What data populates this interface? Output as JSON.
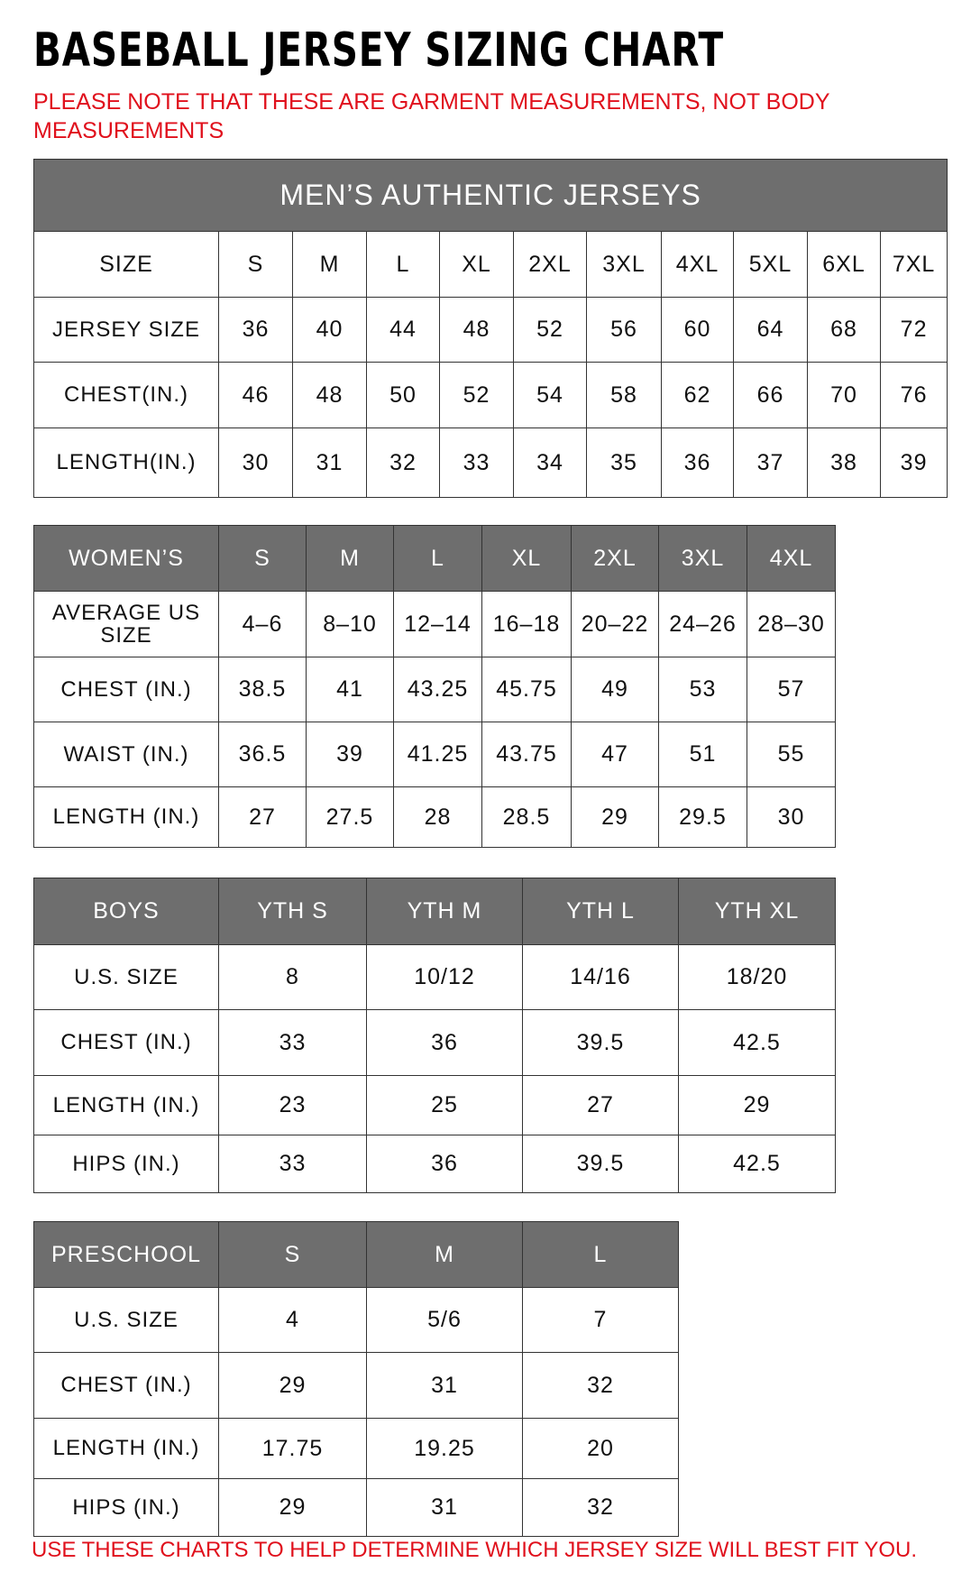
{
  "title": "BASEBALL JERSEY SIZING CHART",
  "note": "PLEASE NOTE THAT THESE ARE GARMENT MEASUREMENTS, NOT BODY MEASUREMENTS",
  "footer": "USE THESE CHARTS TO HELP DETERMINE WHICH JERSEY SIZE WILL BEST FIT YOU.",
  "colors": {
    "header_bg": "#6e6e6e",
    "accent_red": "#e0101c"
  },
  "tables": [
    {
      "id": "mens",
      "caption": "MEN’S AUTHENTIC JERSEYS",
      "header": [
        "SIZE",
        "S",
        "M",
        "L",
        "XL",
        "2XL",
        "3XL",
        "4XL",
        "5XL",
        "6XL",
        "7XL"
      ],
      "header_style": "plain",
      "rows": [
        [
          "JERSEY SIZE",
          "36",
          "40",
          "44",
          "48",
          "52",
          "56",
          "60",
          "64",
          "68",
          "72"
        ],
        [
          "CHEST(IN.)",
          "46",
          "48",
          "50",
          "52",
          "54",
          "58",
          "62",
          "66",
          "70",
          "76"
        ],
        [
          "LENGTH(IN.)",
          "30",
          "31",
          "32",
          "33",
          "34",
          "35",
          "36",
          "37",
          "38",
          "39"
        ]
      ]
    },
    {
      "id": "womens",
      "header": [
        "WOMEN’S",
        "S",
        "M",
        "L",
        "XL",
        "2XL",
        "3XL",
        "4XL"
      ],
      "header_style": "dark",
      "rows": [
        [
          "AVERAGE US SIZE",
          "4–6",
          "8–10",
          "12–14",
          "16–18",
          "20–22",
          "24–26",
          "28–30"
        ],
        [
          "CHEST (IN.)",
          "38.5",
          "41",
          "43.25",
          "45.75",
          "49",
          "53",
          "57"
        ],
        [
          "WAIST (IN.)",
          "36.5",
          "39",
          "41.25",
          "43.75",
          "47",
          "51",
          "55"
        ],
        [
          "LENGTH (IN.)",
          "27",
          "27.5",
          "28",
          "28.5",
          "29",
          "29.5",
          "30"
        ]
      ]
    },
    {
      "id": "boys",
      "header": [
        "BOYS",
        "YTH S",
        "YTH M",
        "YTH L",
        "YTH XL"
      ],
      "header_style": "dark",
      "rows": [
        [
          "U.S. SIZE",
          "8",
          "10/12",
          "14/16",
          "18/20"
        ],
        [
          "CHEST (IN.)",
          "33",
          "36",
          "39.5",
          "42.5"
        ],
        [
          "LENGTH (IN.)",
          "23",
          "25",
          "27",
          "29"
        ],
        [
          "HIPS (IN.)",
          "33",
          "36",
          "39.5",
          "42.5"
        ]
      ]
    },
    {
      "id": "preschool",
      "header": [
        "PRESCHOOL",
        "S",
        "M",
        "L"
      ],
      "header_style": "dark",
      "rows": [
        [
          "U.S. SIZE",
          "4",
          "5/6",
          "7"
        ],
        [
          "CHEST (IN.)",
          "29",
          "31",
          "32"
        ],
        [
          "LENGTH (IN.)",
          "17.75",
          "19.25",
          "20"
        ],
        [
          "HIPS (IN.)",
          "29",
          "31",
          "32"
        ]
      ]
    }
  ]
}
